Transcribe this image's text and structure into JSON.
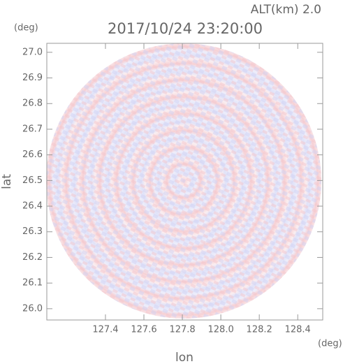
{
  "chart_data": {
    "type": "image",
    "title": "2017/10/24 23:20:00",
    "annotation": "ALT(km) 2.0",
    "x_label": "lon",
    "y_label": "lat",
    "x_unit": "(deg)",
    "y_unit": "(deg)",
    "xlim": [
      127.095,
      128.53
    ],
    "xticks": [
      127.4,
      127.6,
      127.8,
      {
        "value": 128,
        "label": "128.0"
      },
      128.2,
      128.4
    ],
    "ylim": [
      25.956,
      27.035
    ],
    "yticks": [
      {
        "value": 26,
        "label": "26.0"
      },
      26.1,
      26.2,
      26.3,
      26.4,
      26.5,
      26.6,
      26.7,
      26.8,
      26.9,
      {
        "value": 27,
        "label": "27.0"
      }
    ]
  }
}
